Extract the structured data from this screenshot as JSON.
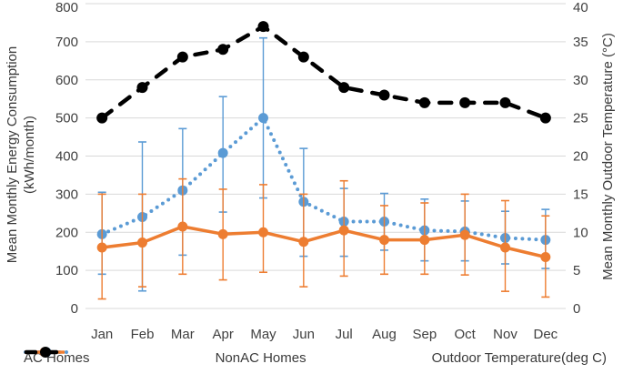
{
  "chart_data": {
    "type": "line",
    "categories": [
      "Jan",
      "Feb",
      "Mar",
      "Apr",
      "May",
      "Jun",
      "Jul",
      "Aug",
      "Sep",
      "Oct",
      "Nov",
      "Dec"
    ],
    "series": [
      {
        "name": "AC Homes",
        "axis": "left",
        "style": "dotted",
        "color": "#5B9BD5",
        "values": [
          195,
          240,
          310,
          408,
          500,
          280,
          228,
          228,
          205,
          202,
          185,
          180
        ],
        "err_high": [
          305,
          437,
          472,
          556,
          710,
          420,
          315,
          302,
          287,
          282,
          255,
          260
        ],
        "err_low": [
          90,
          46,
          140,
          253,
          290,
          137,
          137,
          153,
          125,
          125,
          117,
          105
        ]
      },
      {
        "name": "NonAC Homes",
        "axis": "left",
        "style": "solid",
        "color": "#ED7D31",
        "values": [
          160,
          173,
          215,
          195,
          200,
          175,
          205,
          180,
          180,
          193,
          160,
          135
        ],
        "err_high": [
          300,
          300,
          340,
          313,
          325,
          300,
          335,
          270,
          277,
          300,
          283,
          243
        ],
        "err_low": [
          25,
          57,
          90,
          75,
          95,
          57,
          85,
          90,
          90,
          88,
          45,
          30
        ]
      },
      {
        "name": "Outdoor Temperature(deg C)",
        "axis": "right",
        "style": "dashed",
        "color": "#000000",
        "values": [
          25,
          29,
          33,
          34,
          37,
          33,
          29,
          28,
          27,
          27,
          27,
          25
        ]
      }
    ],
    "ylabel_left_line1": "Mean Monthly Energy Consumption",
    "ylabel_left_line2": "(kWh/month)",
    "ylabel_right": "Mean Monthly Outdoor Temperature (°C)",
    "ylim_left": [
      0,
      800
    ],
    "ylim_right": [
      0,
      40
    ],
    "left_ticks": [
      "0",
      "100",
      "200",
      "300",
      "400",
      "500",
      "600",
      "700",
      "800"
    ],
    "right_ticks": [
      "0",
      "5",
      "10",
      "15",
      "20",
      "25",
      "30",
      "35",
      "40"
    ],
    "grid": true,
    "gridline_color": "#d9d9d9",
    "legend_position": "bottom",
    "tick_color": "#3f3f3f"
  },
  "legend": {
    "item1": "AC Homes",
    "item2": "NonAC Homes",
    "item3": "Outdoor Temperature(deg C)"
  }
}
